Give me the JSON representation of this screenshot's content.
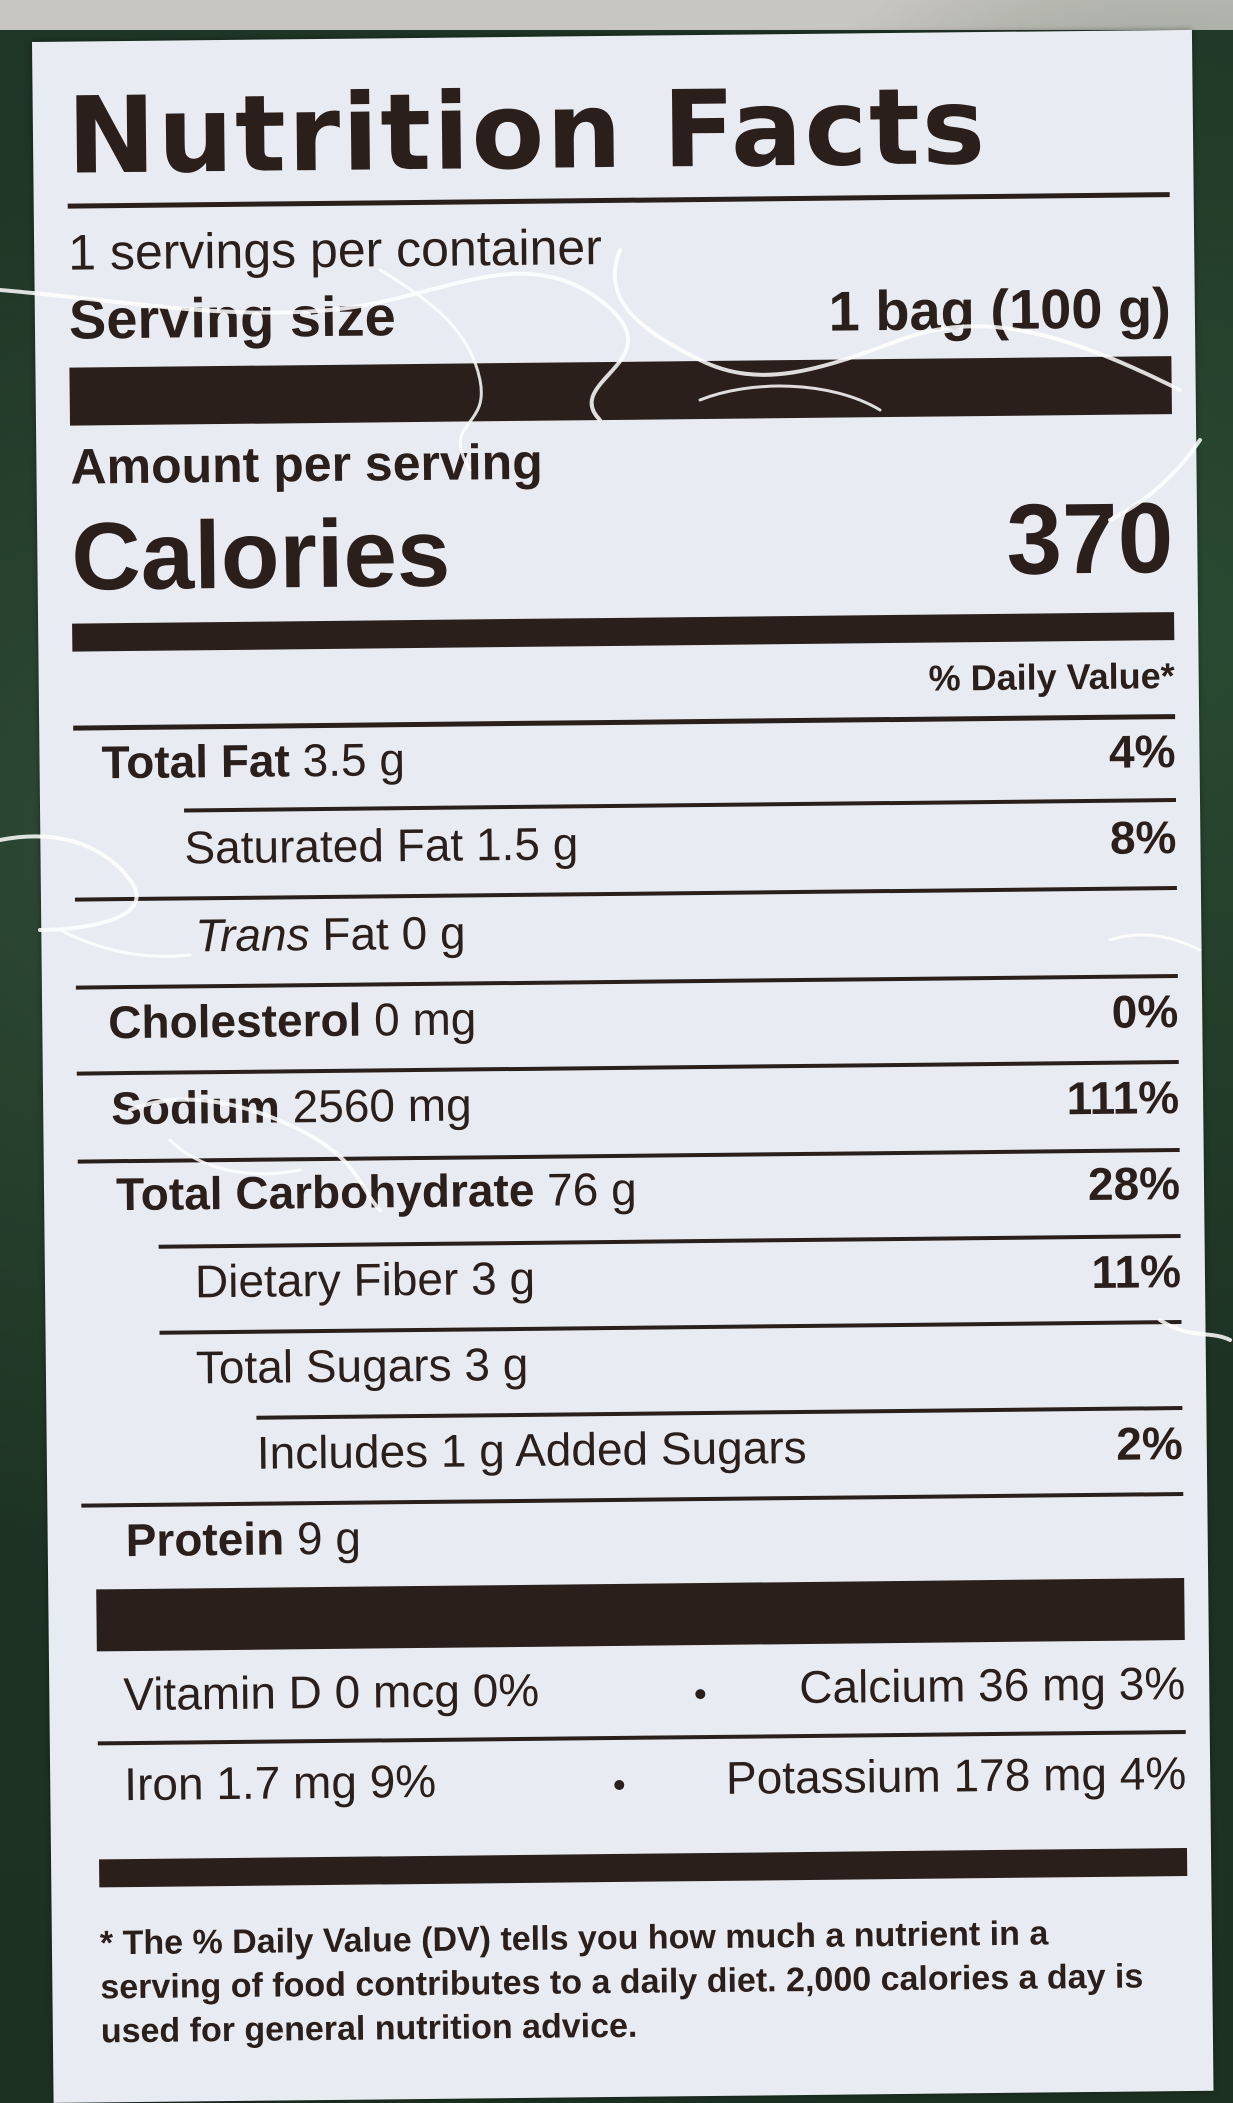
{
  "label": {
    "title": "Nutrition Facts",
    "servings_per_container": "1 servings per container",
    "serving_size_label": "Serving size",
    "serving_size_value": "1 bag (100 g)",
    "amount_per_serving": "Amount per serving",
    "calories_label": "Calories",
    "calories_value": "370",
    "daily_value_header": "% Daily Value*",
    "rows": [
      {
        "name": "Total Fat",
        "amount": "3.5 g",
        "dv": "4%"
      },
      {
        "name": "Saturated Fat",
        "amount": "1.5 g",
        "dv": "8%"
      },
      {
        "name": "Trans",
        "name_suffix": "Fat",
        "amount": "0 g",
        "dv": ""
      },
      {
        "name": "Cholesterol",
        "amount": "0 mg",
        "dv": "0%"
      },
      {
        "name": "Sodium",
        "amount": "2560 mg",
        "dv": "111%"
      },
      {
        "name": "Total Carbohydrate",
        "amount": "76 g",
        "dv": "28%"
      },
      {
        "name": "Dietary Fiber",
        "amount": "3 g",
        "dv": "11%"
      },
      {
        "name": "Total Sugars",
        "amount": "3 g",
        "dv": ""
      },
      {
        "name": "Includes 1 g Added Sugars",
        "amount": "",
        "dv": "2%"
      },
      {
        "name": "Protein",
        "amount": "9 g",
        "dv": ""
      }
    ],
    "micros": [
      {
        "left": "Vitamin D 0 mcg 0%",
        "right": "Calcium 36 mg 3%"
      },
      {
        "left": "Iron 1.7 mg 9%",
        "right": "Potassium 178 mg 4%"
      }
    ],
    "footnote": "* The % Daily Value (DV) tells you how much a nutrient in a serving of food contributes to a daily diet. 2,000 calories a day is used for general nutrition advice."
  },
  "colors": {
    "ink": "#2a1f1a",
    "label_bg": "#e9ebf2",
    "package_green": "#1f3525"
  }
}
